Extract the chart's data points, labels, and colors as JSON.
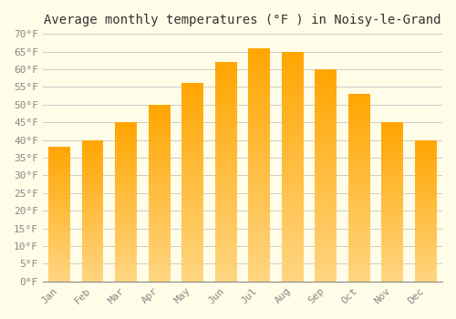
{
  "title": "Average monthly temperatures (°F ) in Noisy-le-Grand",
  "months": [
    "Jan",
    "Feb",
    "Mar",
    "Apr",
    "May",
    "Jun",
    "Jul",
    "Aug",
    "Sep",
    "Oct",
    "Nov",
    "Dec"
  ],
  "values": [
    38,
    40,
    45,
    50,
    56,
    62,
    66,
    65,
    60,
    53,
    45,
    40
  ],
  "bar_color": "#FFA500",
  "bar_color_light": "#FFD580",
  "ylim": [
    0,
    70
  ],
  "yticks": [
    0,
    5,
    10,
    15,
    20,
    25,
    30,
    35,
    40,
    45,
    50,
    55,
    60,
    65,
    70
  ],
  "background_color": "#FFFDE7",
  "grid_color": "#CCCCCC",
  "title_fontsize": 10,
  "tick_fontsize": 8,
  "title_font": "monospace",
  "bar_width": 0.65
}
